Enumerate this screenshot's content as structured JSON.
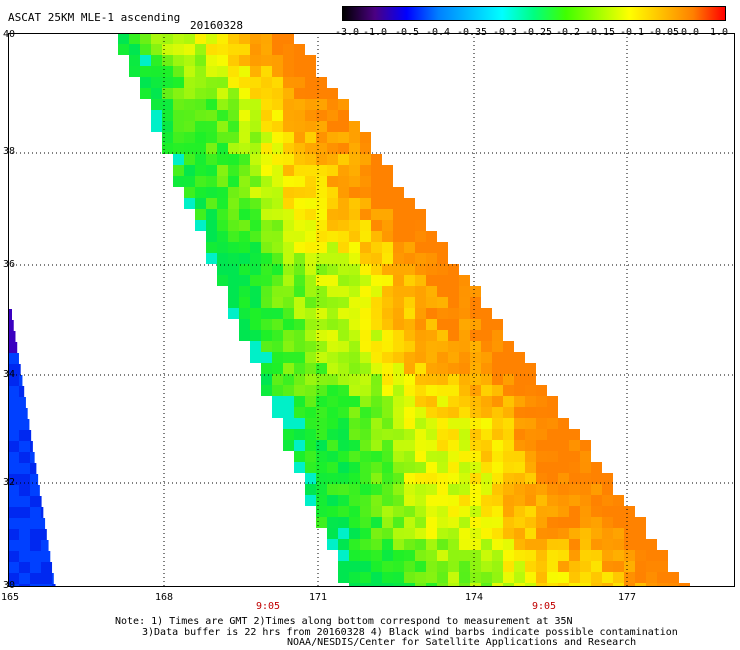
{
  "title": "ASCAT 25KM MLE-1 ascending",
  "date": "20160328",
  "colorbar": {
    "labels": [
      "-3.0",
      "-1.0",
      "-0.5",
      "-0.4",
      "-0.35",
      "-0.3",
      "-0.25",
      "-0.2",
      "-0.15",
      "-0.1",
      "-0.05",
      "0.0",
      "1.0"
    ],
    "colors": [
      "#000000",
      "#4b0082",
      "#0000ff",
      "#0080ff",
      "#00c0ff",
      "#00ffff",
      "#00ff80",
      "#40ff00",
      "#a0ff00",
      "#ffff00",
      "#ffc000",
      "#ff8000",
      "#ff0000"
    ]
  },
  "map": {
    "lat_range": [
      30,
      40
    ],
    "lon_range": [
      165,
      178.5
    ],
    "lat_labels": [
      "40",
      "38",
      "36",
      "34",
      "32",
      "30"
    ],
    "lon_labels": [
      "165",
      "168",
      "171",
      "174",
      "177"
    ],
    "time_labels": [
      "9:05",
      "9:05"
    ],
    "grid": true
  },
  "notes": [
    "Note: 1) Times are GMT 2)Times along bottom correspond to measurement at 35N",
    "3)Data buffer is 22 hrs from 20160328 4) Black wind barbs indicate possible contamination",
    "NOAA/NESDIS/Center for Satellite Applications and Research"
  ]
}
